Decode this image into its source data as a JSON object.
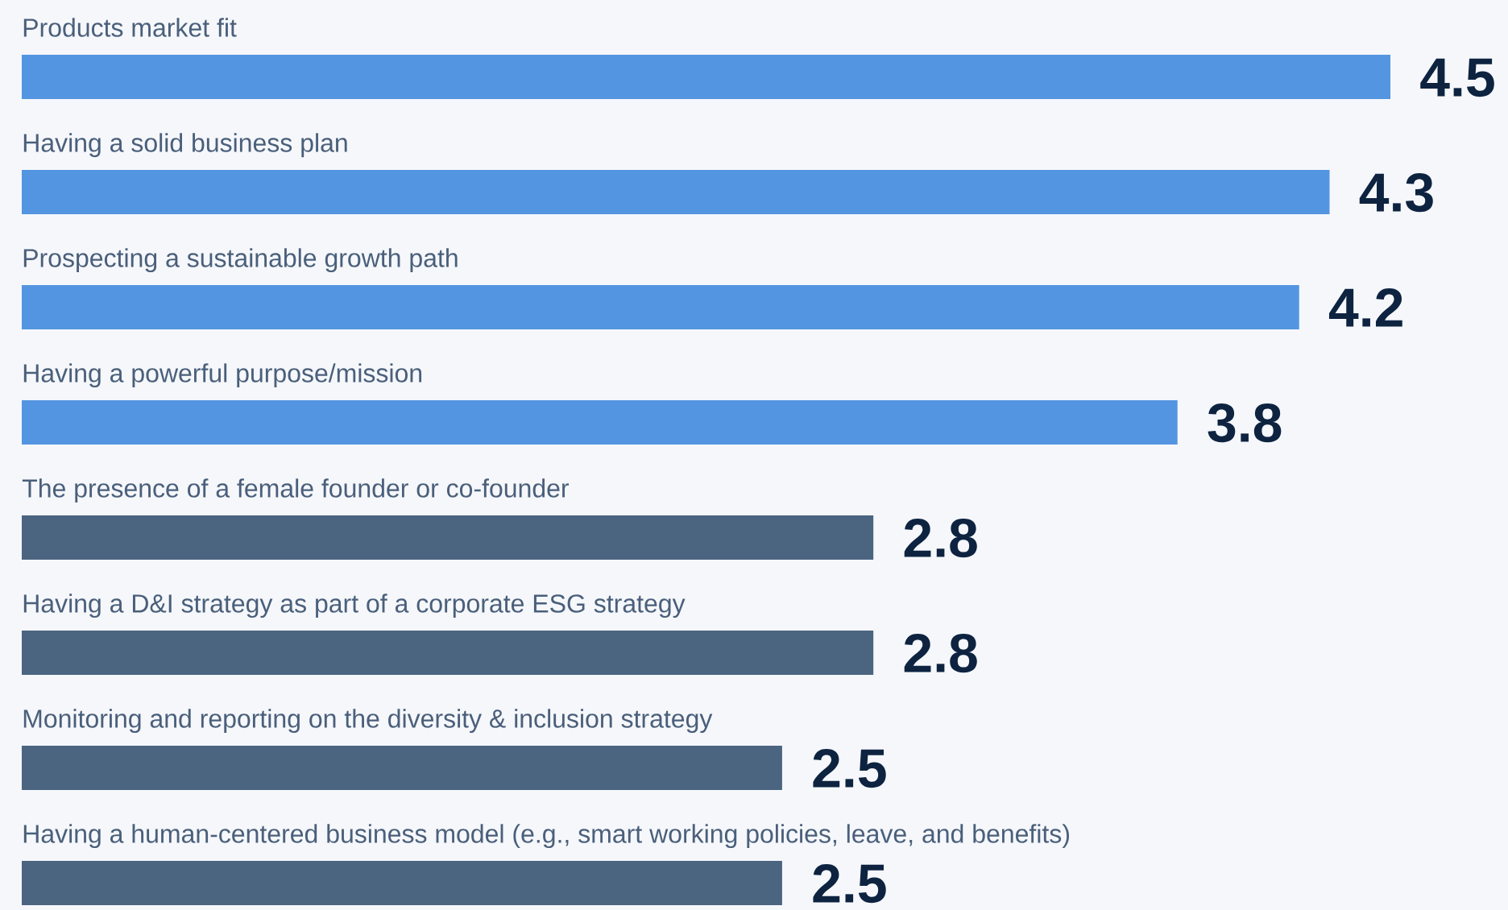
{
  "chart_data": {
    "type": "bar",
    "orientation": "horizontal",
    "data_labels": true,
    "categories": [
      "Products market fit",
      "Having a solid business plan",
      "Prospecting a sustainable growth path",
      "Having a powerful purpose/mission",
      "The presence of a female founder or co-founder",
      "Having a D&I strategy as part of a corporate ESG strategy",
      "Monitoring and reporting on the diversity & inclusion strategy",
      "Having a human-centered business model (e.g., smart working policies, leave, and benefits)"
    ],
    "values": [
      4.5,
      4.3,
      4.2,
      3.8,
      2.8,
      2.8,
      2.5,
      2.5
    ],
    "colors": [
      "#5395e0",
      "#5395e0",
      "#5395e0",
      "#5395e0",
      "#4b6480",
      "#4b6480",
      "#4b6480",
      "#4b6480"
    ]
  }
}
